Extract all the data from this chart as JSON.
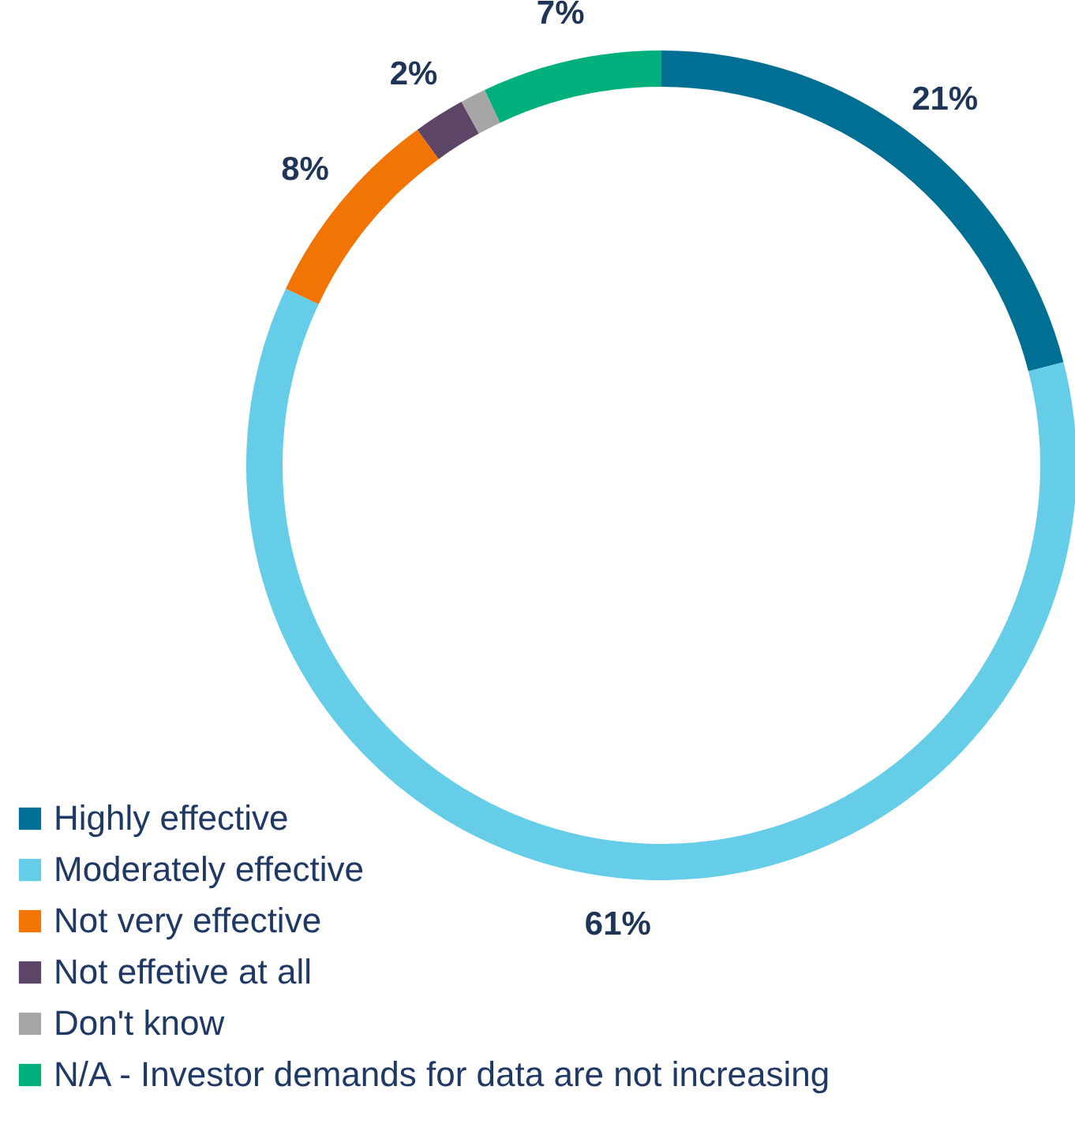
{
  "chart_data": {
    "type": "donut",
    "categories": [
      "Highly effective",
      "Moderately effective",
      "Not very effective",
      "Not effetive at all",
      "Don't know",
      "N/A - Investor demands for data are not increasing"
    ],
    "values": [
      21,
      61,
      8,
      2,
      1,
      7
    ],
    "colors": [
      "#006f94",
      "#65cde8",
      "#f27405",
      "#5c4566",
      "#a6a6a6",
      "#00b07c"
    ],
    "value_labels": [
      "21%",
      "61%",
      "8%",
      "2%",
      null,
      "7%"
    ],
    "legend": "bottom left"
  }
}
